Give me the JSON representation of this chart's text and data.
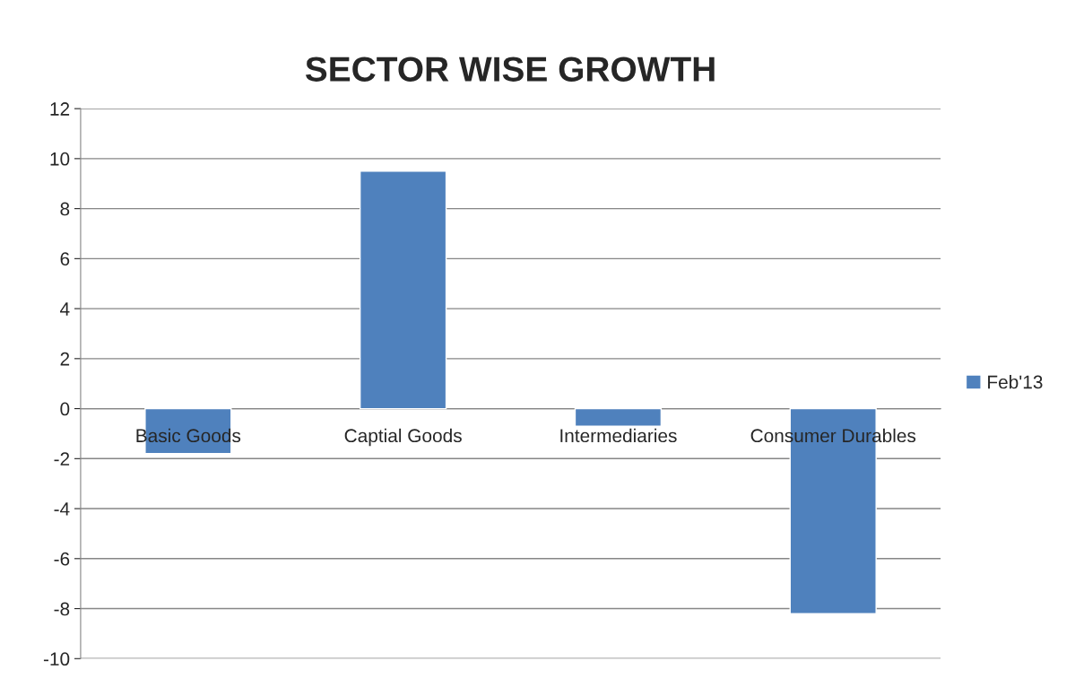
{
  "chart_data": {
    "type": "bar",
    "title": "SECTOR WISE GROWTH",
    "categories": [
      "Basic Goods",
      "Captial Goods",
      "Intermediaries",
      "Consumer Durables"
    ],
    "series": [
      {
        "name": "Feb'13",
        "color": "#4f81bd",
        "values": [
          -1.8,
          9.5,
          -0.7,
          -8.2
        ]
      }
    ],
    "ylim": [
      -10,
      12
    ],
    "yticks": [
      -10,
      -8,
      -6,
      -4,
      -2,
      0,
      2,
      4,
      6,
      8,
      10,
      12
    ],
    "grid": "y",
    "legend": "right"
  }
}
